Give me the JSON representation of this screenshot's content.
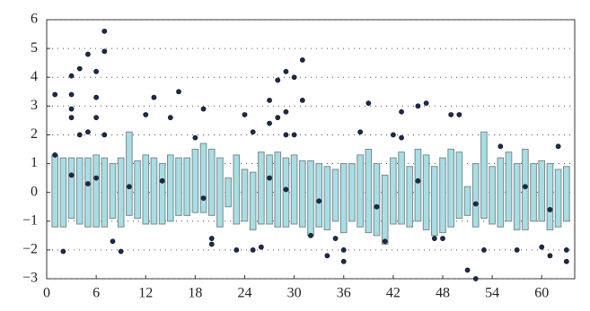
{
  "chart_data": {
    "type": "range-bar",
    "x": [
      1,
      2,
      3,
      4,
      5,
      6,
      7,
      8,
      9,
      10,
      11,
      12,
      13,
      14,
      15,
      16,
      17,
      18,
      19,
      20,
      21,
      22,
      23,
      24,
      25,
      26,
      27,
      28,
      29,
      30,
      31,
      32,
      33,
      34,
      35,
      36,
      37,
      38,
      39,
      40,
      41,
      42,
      43,
      44,
      45,
      46,
      47,
      48,
      49,
      50,
      51,
      52,
      53,
      54,
      55,
      56,
      57,
      58,
      59,
      60,
      61,
      62,
      63
    ],
    "low": [
      -1.2,
      -1.2,
      -0.9,
      -1.1,
      -1.2,
      -1.2,
      -1.2,
      -0.9,
      -1.2,
      -0.8,
      -0.9,
      -1.1,
      -1.1,
      -1.1,
      -1.0,
      -0.8,
      -0.8,
      -0.7,
      -0.7,
      -0.8,
      -1.2,
      -0.5,
      -1.1,
      -1.0,
      -1.3,
      -1.1,
      -1.1,
      -1.2,
      -1.2,
      -1.1,
      -1.2,
      -1.5,
      -1.2,
      -1.3,
      -1.0,
      -1.4,
      -1.0,
      -1.2,
      -1.4,
      -1.5,
      -1.8,
      -1.1,
      -1.1,
      -1.2,
      -1.0,
      -1.3,
      -1.5,
      -1.4,
      -1.2,
      -0.9,
      -0.8,
      -1.2,
      -0.9,
      -1.1,
      -1.2,
      -1.0,
      -1.3,
      -1.3,
      -1.0,
      -1.0,
      -1.3,
      -1.2,
      -1.0
    ],
    "high": [
      1.3,
      1.2,
      1.2,
      1.2,
      1.2,
      1.3,
      1.2,
      1.0,
      1.2,
      2.1,
      1.1,
      1.3,
      1.2,
      1.0,
      1.3,
      1.2,
      1.2,
      1.5,
      1.7,
      1.5,
      1.2,
      0.5,
      1.3,
      0.8,
      0.7,
      1.4,
      1.3,
      1.4,
      1.2,
      1.3,
      1.1,
      1.1,
      1.0,
      0.9,
      0.8,
      1.0,
      1.0,
      1.3,
      1.5,
      1.0,
      0.6,
      1.2,
      1.4,
      0.9,
      1.5,
      1.3,
      0.9,
      1.2,
      1.5,
      1.4,
      0.2,
      1.0,
      2.1,
      0.9,
      1.2,
      1.4,
      1.0,
      1.5,
      1.0,
      1.1,
      1.0,
      0.8,
      0.9
    ],
    "bar_color": "#a8dde4",
    "points": {
      "color": "#1c2b4c",
      "x": [
        1,
        1,
        2,
        3,
        3,
        3,
        3,
        4,
        4,
        5,
        5,
        6,
        6,
        6,
        7,
        7,
        7,
        8,
        9,
        12,
        13,
        15,
        16,
        18,
        19,
        20,
        20,
        23,
        24,
        25,
        25,
        26,
        27,
        27,
        28,
        28,
        29,
        29,
        29,
        30,
        30,
        31,
        31,
        32,
        34,
        35,
        36,
        36,
        38,
        39,
        41,
        42,
        43,
        43,
        45,
        46,
        47,
        48,
        49,
        50,
        51,
        52,
        53,
        55,
        57,
        60,
        61,
        62,
        63,
        63,
        3,
        5,
        6,
        10,
        14,
        19,
        27,
        29,
        33,
        40,
        45,
        52,
        58,
        61
      ],
      "y": [
        3.4,
        1.3,
        -2.05,
        4.05,
        3.4,
        2.9,
        2.6,
        4.3,
        2.0,
        4.8,
        2.1,
        4.2,
        3.3,
        2.6,
        5.6,
        4.9,
        2.0,
        -1.7,
        -2.05,
        2.7,
        3.3,
        2.6,
        3.5,
        1.9,
        2.9,
        -1.6,
        -1.8,
        -2.0,
        2.7,
        2.1,
        -2.0,
        -1.9,
        3.2,
        2.4,
        3.9,
        2.6,
        4.2,
        2.8,
        2.0,
        4.0,
        2.0,
        4.6,
        3.2,
        -1.5,
        -2.2,
        -1.6,
        -2.4,
        -2.0,
        2.1,
        3.1,
        -1.7,
        2.0,
        2.8,
        1.9,
        3.0,
        3.1,
        -1.6,
        -1.6,
        2.7,
        2.7,
        -2.7,
        -3.0,
        -2.0,
        1.6,
        -2.0,
        -1.9,
        -2.2,
        1.6,
        -2.0,
        -2.4,
        0.6,
        0.3,
        0.5,
        0.2,
        0.4,
        -0.2,
        0.5,
        0.1,
        -0.3,
        -0.5,
        0.4,
        -0.4,
        0.2,
        -0.6
      ]
    },
    "xlim": [
      0,
      64
    ],
    "ylim": [
      -3,
      6
    ],
    "xticks": [
      0,
      6,
      12,
      18,
      24,
      30,
      36,
      42,
      48,
      54,
      60
    ],
    "yticks": [
      {
        "value": -3,
        "label": "−3"
      },
      {
        "value": -2,
        "label": "−2"
      },
      {
        "value": -1,
        "label": "−1"
      },
      0,
      1,
      2,
      3,
      4,
      5,
      6
    ],
    "grid": true
  }
}
